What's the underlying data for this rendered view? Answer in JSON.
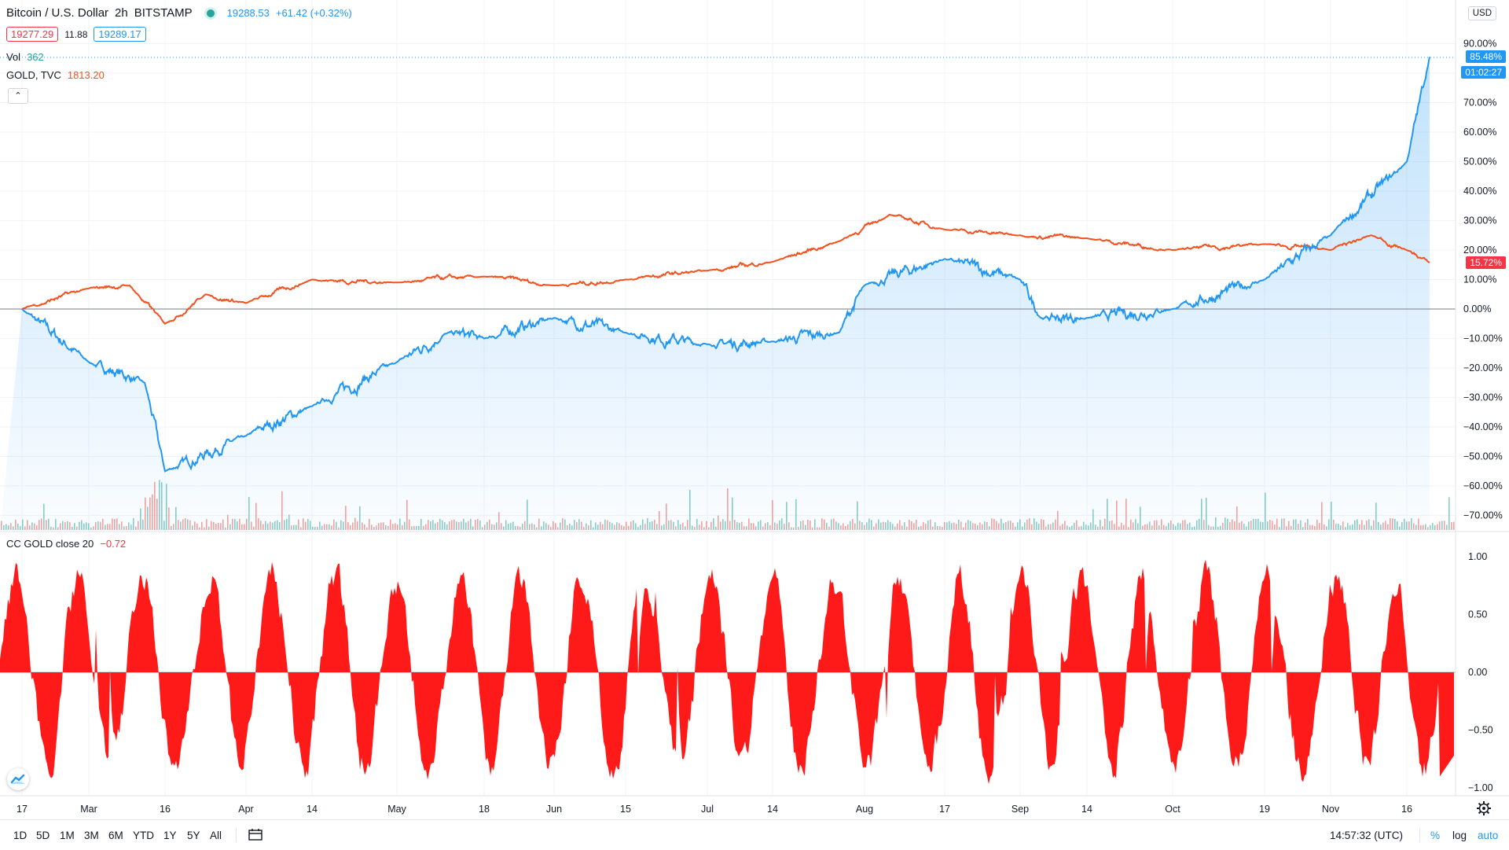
{
  "header": {
    "symbol": "Bitcoin / U.S. Dollar",
    "interval": "2h",
    "exchange": "BITSTAMP",
    "last_price": "19288.53",
    "change": "+61.42 (+0.32%)",
    "bid": "19277.29",
    "spread": "11.88",
    "ask": "19289.17",
    "status_color": "#26a69a"
  },
  "vol": {
    "label": "Vol",
    "value": "362"
  },
  "compare": {
    "label": "GOLD, TVC",
    "value": "1813.20"
  },
  "indicator": {
    "label": "CC GOLD close 20",
    "value": "−0.72"
  },
  "price_scale": {
    "currency": "USD",
    "ticks": [
      "90.00%",
      "80.00%",
      "70.00%",
      "60.00%",
      "50.00%",
      "40.00%",
      "30.00%",
      "20.00%",
      "10.00%",
      "0.00%",
      "−10.00%",
      "−20.00%",
      "−30.00%",
      "−40.00%",
      "−50.00%",
      "−60.00%",
      "−70.00%"
    ],
    "top_cut": "1("
  },
  "osc_scale": {
    "ticks": [
      "1.00",
      "0.50",
      "0.00",
      "−0.50",
      "−1.00"
    ]
  },
  "last_tags": {
    "btc": "85.48%",
    "countdown": "01:02:27",
    "gold": "15.72%"
  },
  "dates": [
    "17",
    "Mar",
    "16",
    "Apr",
    "14",
    "May",
    "18",
    "Jun",
    "15",
    "Jul",
    "14",
    "Aug",
    "17",
    "Sep",
    "14",
    "Oct",
    "19",
    "Nov",
    "16"
  ],
  "toolbar": {
    "ranges": [
      "1D",
      "5D",
      "1M",
      "3M",
      "6M",
      "YTD",
      "1Y",
      "5Y",
      "All"
    ],
    "time": "14:57:32 (UTC)",
    "percent": "%",
    "log": "log",
    "auto": "auto"
  },
  "colors": {
    "btc": "#2196f3",
    "gold": "#f4511e",
    "osc": "#ff1a1a",
    "up_tag": "#2196f3",
    "down_tag": "#f23645"
  },
  "chart_data": [
    {
      "type": "line",
      "series": [
        {
          "name": "Bitcoin / U.S. Dollar",
          "x": [
            "Feb 17",
            "Mar 1",
            "Mar 12",
            "Mar 16",
            "Apr 1",
            "Apr 14",
            "May 1",
            "May 11",
            "May 18",
            "Jun 1",
            "Jun 15",
            "Jul 1",
            "Jul 14",
            "Jul 27",
            "Aug 1",
            "Aug 17",
            "Sep 1",
            "Sep 5",
            "Sep 14",
            "Oct 1",
            "Oct 19",
            "Nov 1",
            "Nov 16",
            "Nov 23"
          ],
          "values": [
            0,
            -18,
            -25,
            -55,
            -43,
            -33,
            -18,
            -8,
            -10,
            -3,
            -8,
            -12,
            -11,
            -8,
            8,
            17,
            10,
            -3,
            -3,
            0,
            10,
            25,
            50,
            85.48
          ]
        },
        {
          "name": "GOLD, TVC",
          "x": [
            "Feb 17",
            "Mar 1",
            "Mar 9",
            "Mar 16",
            "Mar 24",
            "Apr 1",
            "Apr 14",
            "May 1",
            "May 18",
            "Jun 1",
            "Jun 15",
            "Jul 1",
            "Jul 14",
            "Jul 27",
            "Aug 6",
            "Aug 17",
            "Sep 1",
            "Sep 14",
            "Oct 1",
            "Oct 19",
            "Nov 1",
            "Nov 9",
            "Nov 16",
            "Nov 23"
          ],
          "values": [
            0,
            7,
            8,
            -5,
            5,
            2,
            10,
            9,
            11,
            8,
            10,
            13,
            16,
            23,
            32,
            27,
            25,
            24,
            20,
            22,
            20,
            25,
            20,
            15.72
          ]
        }
      ],
      "ylim": [
        -70,
        90
      ]
    },
    {
      "type": "area",
      "series": [
        {
          "name": "CC GOLD close 20",
          "last": -0.72
        }
      ],
      "ylim": [
        -1,
        1
      ]
    }
  ]
}
